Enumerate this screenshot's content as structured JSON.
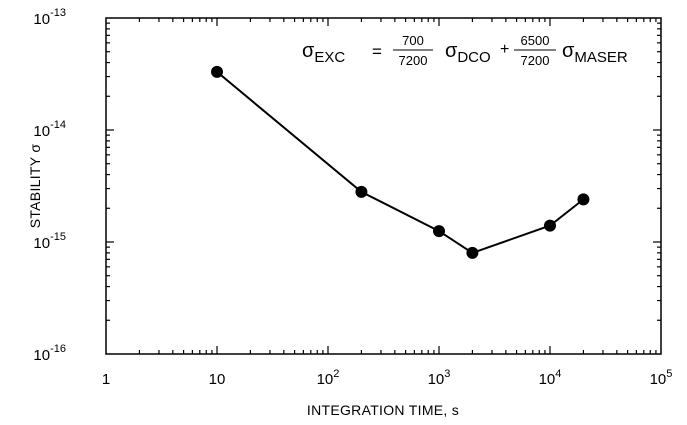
{
  "chart_data": {
    "type": "line",
    "title": "",
    "xlabel": "INTEGRATION TIME, s",
    "ylabel": "STABILITY σ",
    "x_scale": "log",
    "y_scale": "log",
    "xlim": [
      1,
      100000
    ],
    "ylim": [
      1e-16,
      1e-13
    ],
    "grid": false,
    "x_ticks": [
      {
        "value": 1,
        "base": "1",
        "exp": ""
      },
      {
        "value": 10,
        "base": "10",
        "exp": ""
      },
      {
        "value": 100,
        "base": "10",
        "exp": "2"
      },
      {
        "value": 1000,
        "base": "10",
        "exp": "3"
      },
      {
        "value": 10000,
        "base": "10",
        "exp": "4"
      },
      {
        "value": 100000,
        "base": "10",
        "exp": "5"
      }
    ],
    "y_ticks": [
      {
        "value": 1e-13,
        "base": "10",
        "exp": "-13"
      },
      {
        "value": 1e-14,
        "base": "10",
        "exp": "-14"
      },
      {
        "value": 1e-15,
        "base": "10",
        "exp": "-15"
      },
      {
        "value": 1e-16,
        "base": "10",
        "exp": "-16"
      }
    ],
    "series": [
      {
        "x": [
          10,
          200,
          1000,
          2000,
          10000,
          20000
        ],
        "y": [
          3.3e-14,
          2.8e-15,
          1.25e-15,
          8e-16,
          1.4e-15,
          2.4e-15
        ]
      }
    ],
    "annotation": {
      "lhs_symbol": "σ",
      "lhs_sub": "EXC",
      "equals": "=",
      "frac1_num": "700",
      "frac1_den": "7200",
      "term1_symbol": "σ",
      "term1_sub": "DCO",
      "plus": "+",
      "frac2_num": "6500",
      "frac2_den": "7200",
      "term2_symbol": "σ",
      "term2_sub": "MASER"
    }
  }
}
